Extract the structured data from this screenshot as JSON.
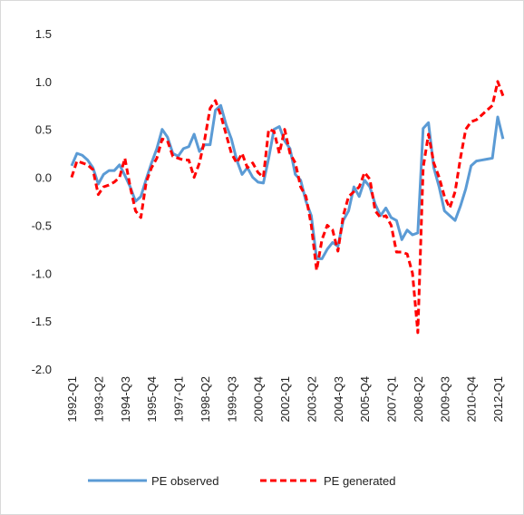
{
  "chart_data": {
    "type": "line",
    "categories": [
      "1992-Q1",
      null,
      null,
      null,
      null,
      "1993-Q2",
      null,
      null,
      null,
      null,
      "1994-Q3",
      null,
      null,
      null,
      null,
      "1995-Q4",
      null,
      null,
      null,
      null,
      "1997-Q1",
      null,
      null,
      null,
      null,
      "1998-Q2",
      null,
      null,
      null,
      null,
      "1999-Q3",
      null,
      null,
      null,
      null,
      "2000-Q4",
      null,
      null,
      null,
      null,
      "2002-Q1",
      null,
      null,
      null,
      null,
      "2003-Q2",
      null,
      null,
      null,
      null,
      "2004-Q3",
      null,
      null,
      null,
      null,
      "2005-Q4",
      null,
      null,
      null,
      null,
      "2007-Q1",
      null,
      null,
      null,
      null,
      "2008-Q2",
      null,
      null,
      null,
      null,
      "2009-Q3",
      null,
      null,
      null,
      null,
      "2010-Q4",
      null,
      null,
      null,
      null,
      "2012-Q1",
      null
    ],
    "series": [
      {
        "name": "PE observed",
        "color": "#5b9bd5",
        "dashed": false,
        "values": [
          0.12,
          0.25,
          0.23,
          0.18,
          0.1,
          -0.07,
          0.03,
          0.07,
          0.07,
          0.13,
          0.02,
          -0.1,
          -0.25,
          -0.2,
          -0.02,
          0.15,
          0.3,
          0.5,
          0.42,
          0.25,
          0.22,
          0.3,
          0.32,
          0.45,
          0.27,
          0.34,
          0.34,
          0.7,
          0.75,
          0.55,
          0.4,
          0.18,
          0.03,
          0.1,
          0.0,
          -0.05,
          -0.06,
          0.2,
          0.5,
          0.53,
          0.38,
          0.3,
          0.03,
          -0.03,
          -0.25,
          -0.4,
          -0.85,
          -0.85,
          -0.75,
          -0.68,
          -0.72,
          -0.45,
          -0.35,
          -0.1,
          -0.2,
          -0.03,
          -0.1,
          -0.28,
          -0.4,
          -0.32,
          -0.42,
          -0.45,
          -0.65,
          -0.55,
          -0.6,
          -0.58,
          0.51,
          0.57,
          0.1,
          -0.1,
          -0.35,
          -0.4,
          -0.45,
          -0.3,
          -0.12,
          0.12,
          0.17,
          0.18,
          0.19,
          0.2,
          0.63,
          0.4
        ]
      },
      {
        "name": "PE generated",
        "color": "#ff0000",
        "dashed": true,
        "values": [
          0.0,
          0.17,
          0.15,
          0.13,
          0.08,
          -0.18,
          -0.1,
          -0.08,
          -0.05,
          0.0,
          0.2,
          -0.1,
          -0.35,
          -0.42,
          -0.05,
          0.1,
          0.2,
          0.4,
          0.38,
          0.22,
          0.2,
          0.18,
          0.18,
          0.0,
          0.15,
          0.4,
          0.72,
          0.8,
          0.65,
          0.45,
          0.25,
          0.15,
          0.25,
          0.1,
          0.15,
          0.05,
          0.0,
          0.5,
          0.48,
          0.25,
          0.5,
          0.25,
          0.15,
          -0.1,
          -0.2,
          -0.5,
          -0.97,
          -0.65,
          -0.5,
          -0.55,
          -0.77,
          -0.4,
          -0.2,
          -0.15,
          -0.1,
          0.05,
          -0.02,
          -0.35,
          -0.42,
          -0.4,
          -0.5,
          -0.78,
          -0.78,
          -0.8,
          -1.0,
          -1.62,
          0.1,
          0.45,
          0.15,
          0.0,
          -0.2,
          -0.32,
          -0.15,
          0.2,
          0.5,
          0.58,
          0.6,
          0.65,
          0.7,
          0.75,
          1.0,
          0.85
        ]
      }
    ],
    "ylim": [
      -2,
      1.5
    ],
    "yticks": [
      {
        "value": -2,
        "label": "-2.0"
      },
      -1.5,
      {
        "value": -1,
        "label": "-1.0"
      },
      -0.5,
      {
        "value": 0,
        "label": "0.0"
      },
      0.5,
      {
        "value": 1,
        "label": "1.0"
      },
      1.5
    ],
    "grid": false,
    "legend": "bottom"
  }
}
